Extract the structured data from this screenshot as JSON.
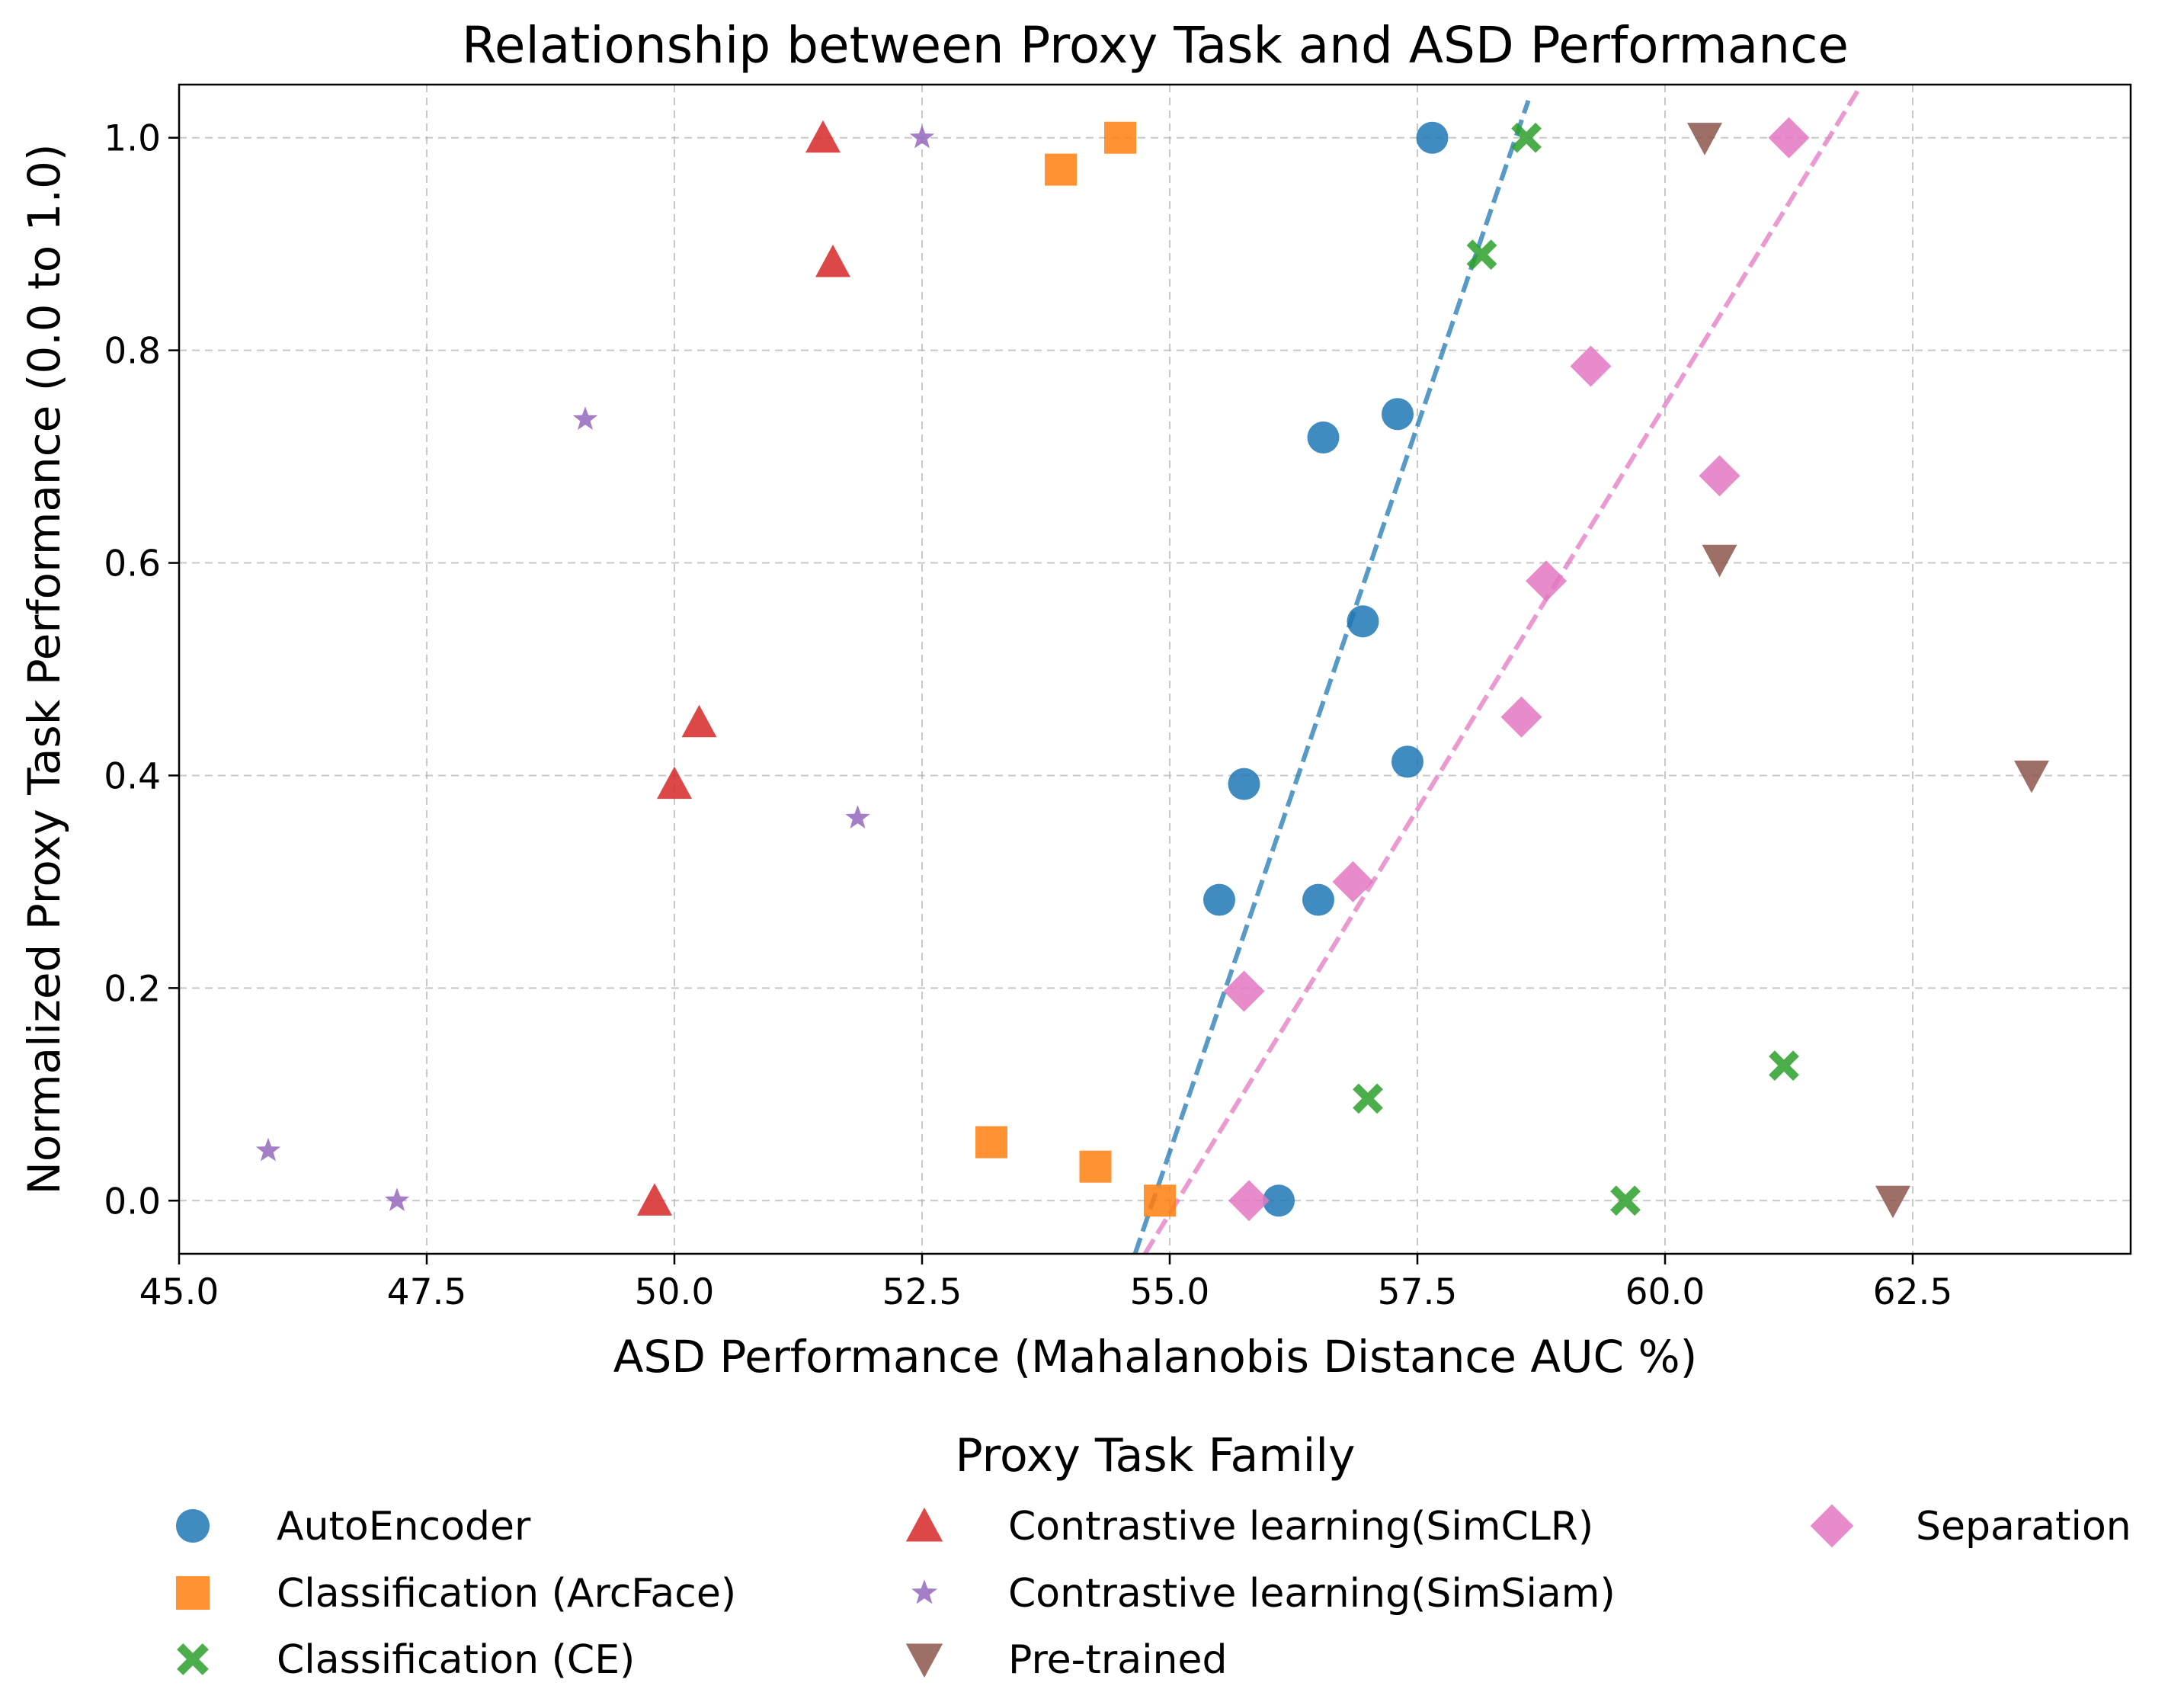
{
  "chart_data": {
    "type": "scatter",
    "title": "Relationship between Proxy Task and ASD Performance",
    "xlabel": "ASD Performance (Mahalanobis Distance AUC %)",
    "ylabel": "Normalized Proxy Task Performance (0.0 to 1.0)",
    "xlim": [
      45.0,
      64.7
    ],
    "ylim": [
      -0.05,
      1.05
    ],
    "xticks": [
      45.0,
      47.5,
      50.0,
      52.5,
      55.0,
      57.5,
      60.0,
      62.5
    ],
    "xtick_labels": [
      "45.0",
      "47.5",
      "50.0",
      "52.5",
      "55.0",
      "57.5",
      "60.0",
      "62.5"
    ],
    "yticks": [
      0.0,
      0.2,
      0.4,
      0.6,
      0.8,
      1.0
    ],
    "ytick_labels": [
      "0.0",
      "0.2",
      "0.4",
      "0.6",
      "0.8",
      "1.0"
    ],
    "grid": true,
    "legend_title": "Proxy Task Family",
    "legend_position": "bottom",
    "series": [
      {
        "name": "AutoEncoder",
        "color": "#1f77b4",
        "marker": "circle",
        "points": [
          [
            57.65,
            1.0
          ],
          [
            57.3,
            0.74
          ],
          [
            56.55,
            0.718
          ],
          [
            56.95,
            0.545
          ],
          [
            57.4,
            0.413
          ],
          [
            55.75,
            0.392
          ],
          [
            55.5,
            0.283
          ],
          [
            56.5,
            0.283
          ],
          [
            56.1,
            0.0
          ]
        ]
      },
      {
        "name": "Classification (ArcFace)",
        "color": "#ff7f0e",
        "marker": "square",
        "points": [
          [
            54.5,
            1.0
          ],
          [
            53.9,
            0.97
          ],
          [
            53.2,
            0.055
          ],
          [
            54.25,
            0.032
          ],
          [
            54.9,
            0.0
          ]
        ]
      },
      {
        "name": "Classification (CE)",
        "color": "#2ca02c",
        "marker": "x",
        "points": [
          [
            58.6,
            1.0
          ],
          [
            58.15,
            0.89
          ],
          [
            57.0,
            0.096
          ],
          [
            61.2,
            0.127
          ],
          [
            59.6,
            0.0
          ]
        ]
      },
      {
        "name": "Contrastive learning(SimCLR)",
        "color": "#d62728",
        "marker": "triangle-up",
        "points": [
          [
            51.5,
            1.0
          ],
          [
            51.6,
            0.883
          ],
          [
            50.25,
            0.45
          ],
          [
            50.0,
            0.392
          ],
          [
            49.8,
            0.0
          ]
        ]
      },
      {
        "name": "Contrastive learning(SimSiam)",
        "color": "#9467bd",
        "marker": "star",
        "points": [
          [
            52.5,
            1.0
          ],
          [
            49.1,
            0.735
          ],
          [
            51.85,
            0.36
          ],
          [
            45.9,
            0.047
          ],
          [
            47.2,
            0.0
          ]
        ]
      },
      {
        "name": "Pre-trained",
        "color": "#8c564b",
        "marker": "triangle-down",
        "points": [
          [
            60.4,
            1.0
          ],
          [
            60.55,
            0.603
          ],
          [
            63.7,
            0.4
          ],
          [
            62.3,
            0.0
          ]
        ]
      },
      {
        "name": "Separation",
        "color": "#e377c2",
        "marker": "diamond",
        "points": [
          [
            61.25,
            1.0
          ],
          [
            59.25,
            0.785
          ],
          [
            60.55,
            0.682
          ],
          [
            58.8,
            0.583
          ],
          [
            58.55,
            0.455
          ],
          [
            56.85,
            0.3
          ],
          [
            55.75,
            0.197
          ],
          [
            55.8,
            0.0
          ]
        ]
      }
    ],
    "trend_lines": [
      {
        "name": "AutoEncoder trend",
        "color": "#1f77b4",
        "x": [
          54.65,
          58.62
        ],
        "y": [
          -0.05,
          1.035
        ]
      },
      {
        "name": "Separation trend",
        "color": "#e377c2",
        "x": [
          54.75,
          61.95
        ],
        "y": [
          -0.05,
          1.045
        ]
      }
    ]
  }
}
